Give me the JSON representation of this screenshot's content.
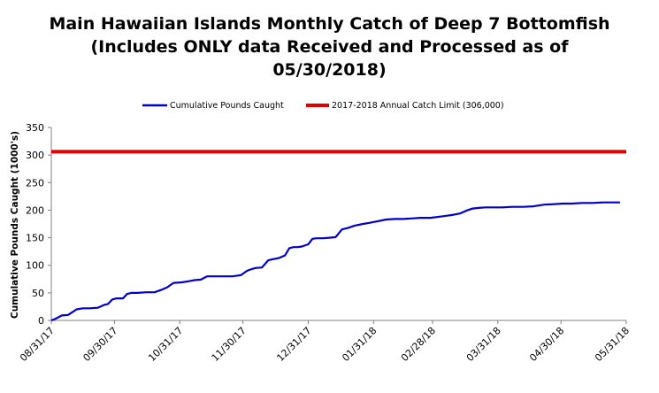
{
  "chart_data": {
    "type": "line",
    "title_lines": [
      "Main Hawaiian Islands Monthly Catch of Deep 7 Bottomfish",
      "(Includes ONLY data Received and Processed as of",
      "05/30/2018)"
    ],
    "ylabel": "Cumulative Pounds Caught (1000's)",
    "xlabel": "",
    "ylim": [
      0,
      350
    ],
    "yticks": [
      0,
      50,
      100,
      150,
      200,
      250,
      300,
      350
    ],
    "xlim": [
      "2017-08-31",
      "2018-05-31"
    ],
    "xticks": [
      "08/31/17",
      "09/30/17",
      "10/31/17",
      "11/30/17",
      "12/31/17",
      "01/31/18",
      "02/28/18",
      "03/31/18",
      "04/30/18",
      "05/31/18"
    ],
    "xtick_dates": [
      "2017-08-31",
      "2017-09-30",
      "2017-10-31",
      "2017-11-30",
      "2017-12-31",
      "2018-01-31",
      "2018-02-28",
      "2018-03-31",
      "2018-04-30",
      "2018-05-31"
    ],
    "legend_position": "top",
    "grid": false,
    "series": [
      {
        "name": "Cumulative Pounds Caught",
        "color": "#0000cc",
        "x": [
          "2017-08-31",
          "2017-09-02",
          "2017-09-05",
          "2017-09-08",
          "2017-09-10",
          "2017-09-12",
          "2017-09-15",
          "2017-09-18",
          "2017-09-22",
          "2017-09-25",
          "2017-09-27",
          "2017-09-29",
          "2017-10-01",
          "2017-10-04",
          "2017-10-06",
          "2017-10-08",
          "2017-10-11",
          "2017-10-15",
          "2017-10-19",
          "2017-10-22",
          "2017-10-25",
          "2017-10-28",
          "2017-11-01",
          "2017-11-04",
          "2017-11-07",
          "2017-11-10",
          "2017-11-13",
          "2017-11-16",
          "2017-11-19",
          "2017-11-22",
          "2017-11-25",
          "2017-11-29",
          "2017-12-02",
          "2017-12-04",
          "2017-12-06",
          "2017-12-09",
          "2017-12-12",
          "2017-12-14",
          "2017-12-17",
          "2017-12-20",
          "2017-12-22",
          "2017-12-24",
          "2017-12-26",
          "2017-12-28",
          "2017-12-31",
          "2018-01-02",
          "2018-01-04",
          "2018-01-07",
          "2018-01-10",
          "2018-01-13",
          "2018-01-16",
          "2018-01-19",
          "2018-01-22",
          "2018-01-26",
          "2018-01-29",
          "2018-02-02",
          "2018-02-06",
          "2018-02-10",
          "2018-02-14",
          "2018-02-18",
          "2018-02-22",
          "2018-02-27",
          "2018-03-05",
          "2018-03-09",
          "2018-03-13",
          "2018-03-16",
          "2018-03-19",
          "2018-03-22",
          "2018-03-25",
          "2018-03-28",
          "2018-04-02",
          "2018-04-07",
          "2018-04-12",
          "2018-04-17",
          "2018-04-22",
          "2018-04-27",
          "2018-05-01",
          "2018-05-05",
          "2018-05-10",
          "2018-05-15",
          "2018-05-20",
          "2018-05-24",
          "2018-05-28"
        ],
        "y": [
          0,
          3,
          9,
          10,
          15,
          20,
          22,
          22,
          23,
          28,
          30,
          38,
          40,
          40,
          48,
          50,
          50,
          51,
          51,
          55,
          60,
          68,
          69,
          71,
          73,
          74,
          80,
          80,
          80,
          80,
          80,
          82,
          90,
          93,
          95,
          96,
          109,
          111,
          113,
          118,
          131,
          133,
          133,
          134,
          138,
          148,
          149,
          149,
          150,
          151,
          165,
          168,
          172,
          175,
          177,
          180,
          183,
          184,
          184,
          185,
          186,
          186,
          189,
          191,
          194,
          199,
          203,
          204,
          205,
          205,
          205,
          206,
          206,
          207,
          210,
          211,
          212,
          212,
          213,
          213,
          214,
          214,
          214
        ]
      },
      {
        "name": "2017-2018 Annual Catch Limit (306,000)",
        "color": "#e00000",
        "x": [
          "2017-08-31",
          "2018-05-31"
        ],
        "y": [
          306,
          306
        ]
      }
    ]
  }
}
